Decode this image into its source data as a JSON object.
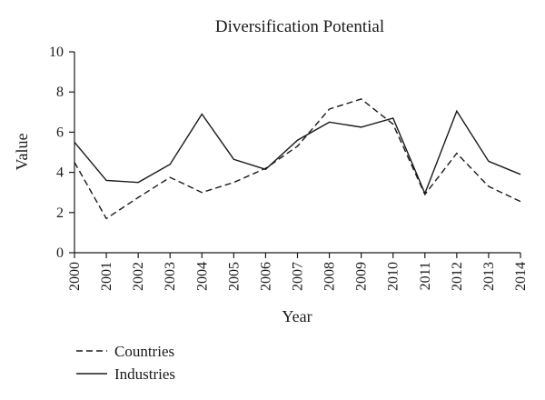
{
  "chart_data": {
    "type": "line",
    "title": "Diversification Potential",
    "xlabel": "Year",
    "ylabel": "Value",
    "x": [
      2000,
      2001,
      2002,
      2003,
      2004,
      2005,
      2006,
      2007,
      2008,
      2009,
      2010,
      2011,
      2012,
      2013,
      2014
    ],
    "xlim": [
      2000,
      2014
    ],
    "ylim": [
      0,
      10
    ],
    "yticks": [
      0,
      2,
      4,
      6,
      8,
      10
    ],
    "grid": false,
    "legend_position": "bottom-left",
    "series": [
      {
        "name": "Countries",
        "style": "dashed",
        "color": "#1a1a1a",
        "values": [
          4.5,
          1.7,
          2.75,
          3.75,
          3.0,
          3.5,
          4.2,
          5.3,
          7.15,
          7.65,
          6.4,
          2.9,
          4.95,
          3.3,
          2.55
        ]
      },
      {
        "name": "Industries",
        "style": "solid",
        "color": "#1a1a1a",
        "values": [
          5.5,
          3.6,
          3.5,
          4.4,
          6.9,
          4.65,
          4.15,
          5.6,
          6.5,
          6.25,
          6.7,
          2.95,
          7.05,
          4.55,
          3.9
        ]
      }
    ]
  }
}
